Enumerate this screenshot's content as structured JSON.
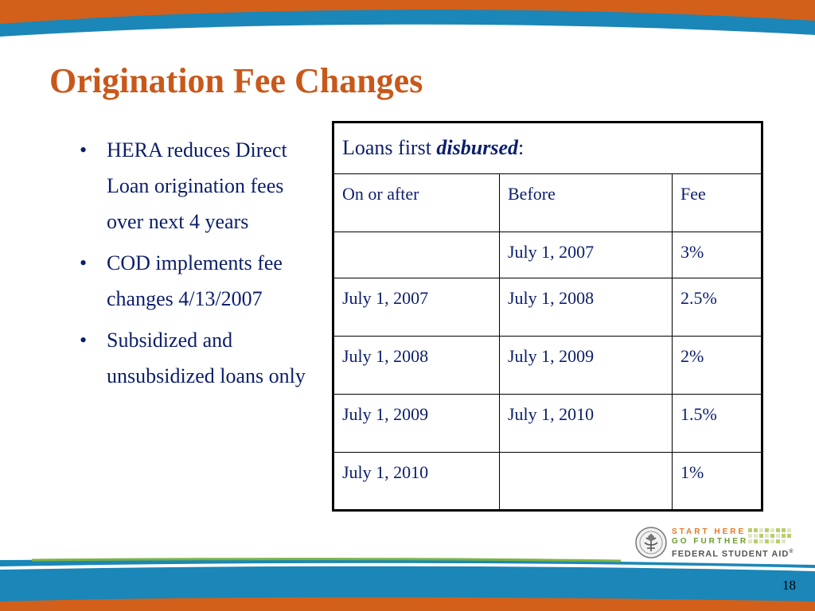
{
  "slide": {
    "title": "Origination Fee Changes",
    "page_number": "18"
  },
  "bullets": [
    "HERA reduces Direct Loan origination fees over next 4 years",
    "COD implements fee changes 4/13/2007",
    "Subsidized and unsubsidized loans only"
  ],
  "table": {
    "header_prefix": "Loans first ",
    "header_emphasis": "disbursed",
    "header_suffix": ":",
    "columns": [
      "On or after",
      "Before",
      "Fee"
    ],
    "rows": [
      [
        "",
        "July 1, 2007",
        "3%"
      ],
      [
        "July 1, 2007",
        "July 1, 2008",
        "2.5%"
      ],
      [
        "July 1, 2008",
        "July 1, 2009",
        "2%"
      ],
      [
        "July 1, 2009",
        "July 1, 2010",
        "1.5%"
      ],
      [
        "July 1, 2010",
        "",
        "1%"
      ]
    ]
  },
  "logo": {
    "line1": "START HERE",
    "line2": "GO FURTHER",
    "line3": "FEDERAL STUDENT AID",
    "trademark": "®"
  },
  "colors": {
    "title": "#c8581a",
    "body_text": "#0b1e6b",
    "band_orange": "#d2601a",
    "band_blue": "#1b86b8",
    "band_green": "#7cb342"
  }
}
